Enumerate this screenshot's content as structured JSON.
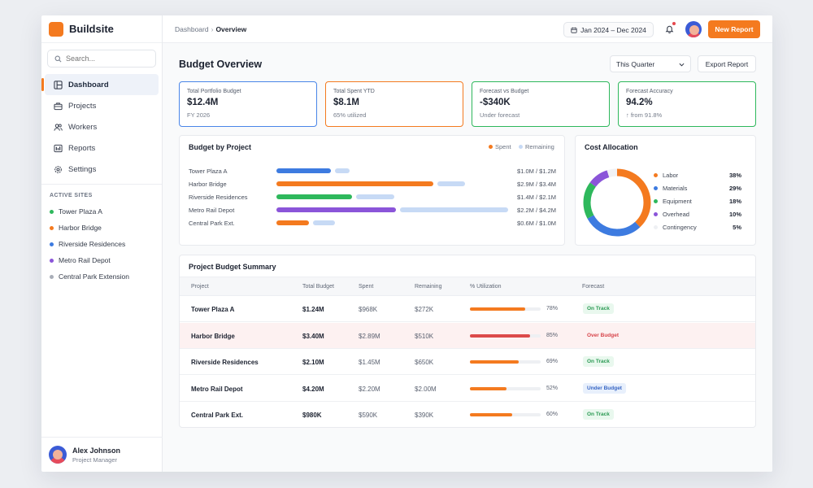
{
  "brand": {
    "name": "Buildsite",
    "accent": "#f47a1f"
  },
  "search": {
    "placeholder": "Search..."
  },
  "nav": [
    {
      "label": "Dashboard",
      "icon": "dashboard-icon",
      "active": true
    },
    {
      "label": "Projects",
      "icon": "briefcase-icon",
      "active": false
    },
    {
      "label": "Workers",
      "icon": "users-icon",
      "active": false
    },
    {
      "label": "Reports",
      "icon": "reports-icon",
      "active": false
    },
    {
      "label": "Settings",
      "icon": "gear-icon",
      "active": false
    }
  ],
  "sites": {
    "title": "ACTIVE SITES",
    "items": [
      {
        "label": "Tower Plaza A",
        "color": "#2eb85c"
      },
      {
        "label": "Harbor Bridge",
        "color": "#f47a1f"
      },
      {
        "label": "Riverside Residences",
        "color": "#3d7be0"
      },
      {
        "label": "Metro Rail Depot",
        "color": "#8b55d9"
      },
      {
        "label": "Central Park Extension",
        "color": "#a9aeb8"
      }
    ]
  },
  "user": {
    "name": "Alex Johnson",
    "role": "Project Manager"
  },
  "topbar": {
    "breadcrumb_root": "Dashboard",
    "breadcrumb_sep": "›",
    "breadcrumb_current": "Overview",
    "date_range": "Jan 2024 – Dec 2024",
    "new_report": "New Report"
  },
  "page": {
    "title": "Budget Overview",
    "period_select": "This Quarter",
    "export": "Export Report"
  },
  "kpis": [
    {
      "label": "Total Portfolio Budget",
      "value": "$12.4M",
      "sub": "FY 2026",
      "color": "#4a86e8"
    },
    {
      "label": "Total Spent YTD",
      "value": "$8.1M",
      "sub": "65% utilized",
      "color": "#f47a1f"
    },
    {
      "label": "Forecast vs Budget",
      "value": "-$340K",
      "sub": "Under forecast",
      "color": "#2eb85c"
    },
    {
      "label": "Forecast Accuracy",
      "value": "94.2%",
      "sub": "↑ from 91.8%",
      "color": "#2eb85c"
    }
  ],
  "budget_by_project": {
    "title": "Budget by Project",
    "legend_spent": "Spent",
    "legend_remaining": "Remaining",
    "rows": [
      {
        "name": "Tower Plaza A",
        "value": "$1.0M / $1.2M",
        "spent": 1.0,
        "remaining": 0.2,
        "color": "#3d7be0"
      },
      {
        "name": "Harbor Bridge",
        "value": "$2.9M / $3.4M",
        "spent": 2.9,
        "remaining": 0.5,
        "color": "#f47a1f"
      },
      {
        "name": "Riverside Residences",
        "value": "$1.4M / $2.1M",
        "spent": 1.4,
        "remaining": 0.7,
        "color": "#2eb85c"
      },
      {
        "name": "Metro Rail Depot",
        "value": "$2.2M / $4.2M",
        "spent": 2.2,
        "remaining": 2.0,
        "color": "#8b55d9"
      },
      {
        "name": "Central Park Ext.",
        "value": "$0.6M / $1.0M",
        "spent": 0.6,
        "remaining": 0.4,
        "color": "#f47a1f"
      }
    ]
  },
  "cost_allocation": {
    "title": "Cost Allocation",
    "items": [
      {
        "label": "Labor",
        "pct": "38%",
        "value": 38,
        "color": "#f47a1f"
      },
      {
        "label": "Materials",
        "pct": "29%",
        "value": 29,
        "color": "#3d7be0"
      },
      {
        "label": "Equipment",
        "pct": "18%",
        "value": 18,
        "color": "#2eb85c"
      },
      {
        "label": "Overhead",
        "pct": "10%",
        "value": 10,
        "color": "#8b55d9"
      },
      {
        "label": "Contingency",
        "pct": "5%",
        "value": 5,
        "color": "#f1f2f5"
      }
    ]
  },
  "summary": {
    "title": "Project Budget Summary",
    "headers": [
      "Project",
      "Total Budget",
      "Spent",
      "Remaining",
      "% Utilization",
      "Forecast"
    ],
    "rows": [
      {
        "project": "Tower Plaza A",
        "total": "$1.24M",
        "spent": "$968K",
        "remaining": "$272K",
        "util": "78%",
        "util_value": 78,
        "forecast": "On Track",
        "status": "ok"
      },
      {
        "project": "Harbor Bridge",
        "total": "$3.40M",
        "spent": "$2.89M",
        "remaining": "$510K",
        "util": "85%",
        "util_value": 85,
        "forecast": "Over Budget",
        "status": "over"
      },
      {
        "project": "Riverside Residences",
        "total": "$2.10M",
        "spent": "$1.45M",
        "remaining": "$650K",
        "util": "69%",
        "util_value": 69,
        "forecast": "On Track",
        "status": "ok"
      },
      {
        "project": "Metro Rail Depot",
        "total": "$4.20M",
        "spent": "$2.20M",
        "remaining": "$2.00M",
        "util": "52%",
        "util_value": 52,
        "forecast": "Under Budget",
        "status": "under"
      },
      {
        "project": "Central Park Ext.",
        "total": "$980K",
        "spent": "$590K",
        "remaining": "$390K",
        "util": "60%",
        "util_value": 60,
        "forecast": "On Track",
        "status": "ok"
      }
    ]
  }
}
